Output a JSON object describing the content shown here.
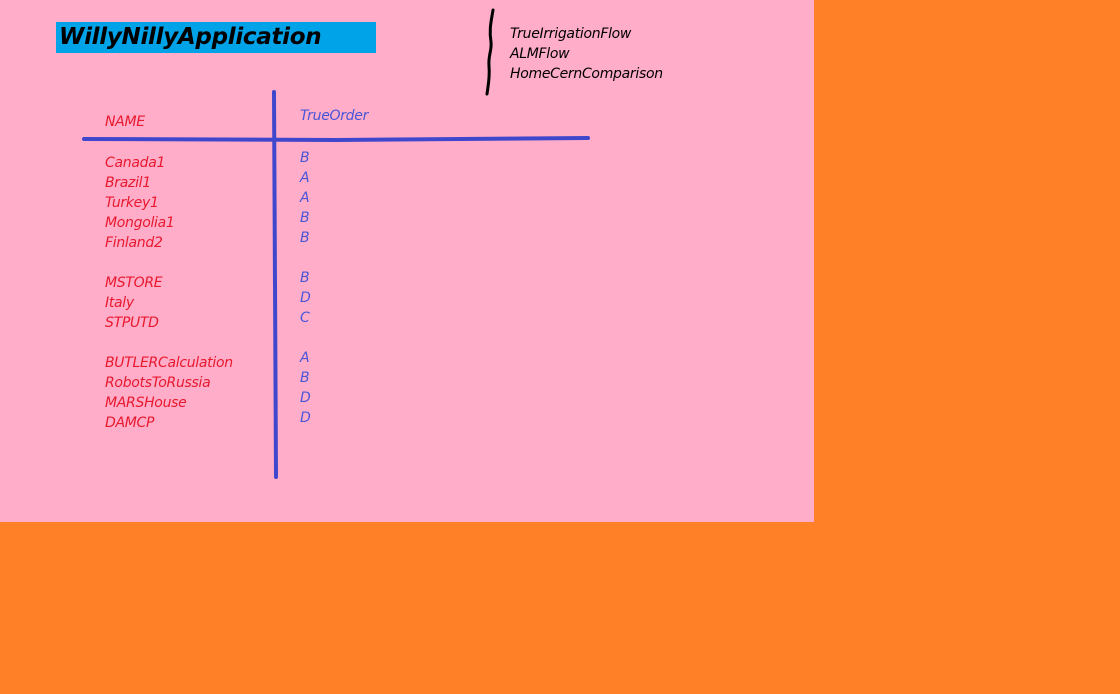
{
  "app": {
    "title": "WillyNillyApplication"
  },
  "nav": {
    "items": [
      {
        "label": "TrueIrrigationFlow"
      },
      {
        "label": "ALMFlow"
      },
      {
        "label": "HomeCernComparison"
      }
    ]
  },
  "table": {
    "name_header": "NAME",
    "order_header": "TrueOrder",
    "groups": [
      {
        "rows": [
          {
            "name": "Canada1",
            "order": "B"
          },
          {
            "name": "Brazil1",
            "order": "A"
          },
          {
            "name": "Turkey1",
            "order": "A"
          },
          {
            "name": "Mongolia1",
            "order": "B"
          },
          {
            "name": "Finland2",
            "order": "B"
          }
        ]
      },
      {
        "rows": [
          {
            "name": "MSTORE",
            "order": "B"
          },
          {
            "name": "Italy",
            "order": "D"
          },
          {
            "name": "STPUTD",
            "order": "C"
          }
        ]
      },
      {
        "rows": [
          {
            "name": "BUTLERCalculation",
            "order": "A"
          },
          {
            "name": "RobotsToRussia",
            "order": "B"
          },
          {
            "name": "MARSHouse",
            "order": "D"
          },
          {
            "name": "DAMCP",
            "order": "D"
          }
        ]
      }
    ]
  },
  "colors": {
    "background": "#ff8026",
    "canvas": "#ffadc8",
    "title_bar": "#00a2e8",
    "name_text": "#e8182e",
    "order_text": "#4a56d8",
    "grid_line": "#3f48cc"
  }
}
